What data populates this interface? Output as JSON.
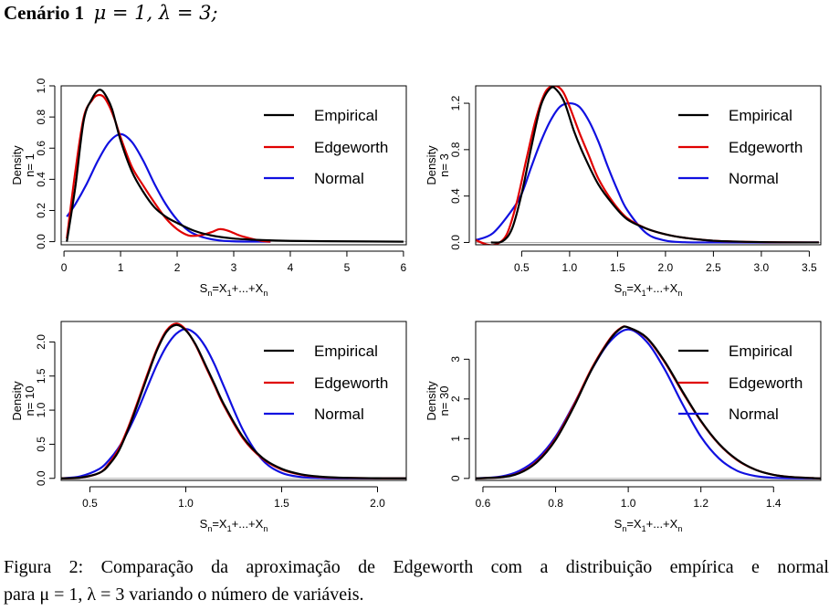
{
  "header": {
    "label": "Cenário 1",
    "params": "μ = 1, λ = 3;"
  },
  "caption": {
    "line1": "Figura 2: Comparação da aproximação de Edgeworth com a distribuição empírica e normal",
    "line2": "para μ = 1, λ = 3 variando o número de variáveis."
  },
  "colors": {
    "empirical": "#000000",
    "edgeworth": "#e00000",
    "normal": "#1010e0"
  },
  "chart_data": [
    {
      "type": "line",
      "ylabel": "Density",
      "n_label": "n= 1",
      "xlabel_parts": [
        "S",
        "n",
        "=X",
        "1",
        "+...+X",
        "n"
      ],
      "xlim": [
        -0.05,
        6.05
      ],
      "ylim": [
        -0.02,
        1.0
      ],
      "xticks": [
        0,
        1,
        2,
        3,
        4,
        5,
        6
      ],
      "xtick_labels": [
        "0",
        "1",
        "2",
        "3",
        "4",
        "5",
        "6"
      ],
      "yticks": [
        0.0,
        0.2,
        0.4,
        0.6,
        0.8,
        1.0
      ],
      "ytick_labels": [
        "0.0",
        "0.2",
        "0.4",
        "0.6",
        "0.8",
        "1.0"
      ],
      "legend": [
        "Empirical",
        "Edgeworth",
        "Normal"
      ],
      "series": [
        {
          "name": "Empirical",
          "x": [
            0.05,
            0.2,
            0.35,
            0.5,
            0.6,
            0.67,
            0.75,
            0.85,
            1.0,
            1.2,
            1.4,
            1.6,
            1.8,
            2.0,
            2.3,
            2.6,
            3.0,
            3.5,
            4.0,
            5.0,
            6.0
          ],
          "y": [
            0.0,
            0.35,
            0.78,
            0.92,
            0.97,
            0.97,
            0.93,
            0.85,
            0.65,
            0.45,
            0.32,
            0.22,
            0.16,
            0.12,
            0.07,
            0.04,
            0.02,
            0.01,
            0.005,
            0.002,
            0.0
          ]
        },
        {
          "name": "Edgeworth",
          "x": [
            0.05,
            0.2,
            0.35,
            0.5,
            0.6,
            0.7,
            0.8,
            0.9,
            1.0,
            1.2,
            1.4,
            1.6,
            1.8,
            2.0,
            2.2,
            2.4,
            2.6,
            2.75,
            2.9,
            3.1,
            3.3,
            3.5,
            3.65
          ],
          "y": [
            0.02,
            0.45,
            0.8,
            0.91,
            0.94,
            0.93,
            0.87,
            0.78,
            0.67,
            0.48,
            0.36,
            0.25,
            0.15,
            0.08,
            0.04,
            0.04,
            0.06,
            0.08,
            0.07,
            0.04,
            0.02,
            0.005,
            0.0
          ]
        },
        {
          "name": "Normal",
          "x": [
            0.05,
            0.2,
            0.4,
            0.6,
            0.8,
            1.0,
            1.2,
            1.4,
            1.6,
            1.8,
            2.0,
            2.2,
            2.4,
            2.6,
            2.8,
            3.0,
            3.3,
            3.65
          ],
          "y": [
            0.16,
            0.24,
            0.37,
            0.52,
            0.64,
            0.69,
            0.64,
            0.52,
            0.37,
            0.24,
            0.14,
            0.07,
            0.035,
            0.016,
            0.006,
            0.002,
            0.0005,
            0.0
          ]
        }
      ]
    },
    {
      "type": "line",
      "ylabel": "Density",
      "n_label": "n= 3",
      "xlabel_parts": [
        "S",
        "n",
        "=X",
        "1",
        "+...+X",
        "n"
      ],
      "xlim": [
        0.02,
        3.62
      ],
      "ylim": [
        -0.02,
        1.35
      ],
      "xticks": [
        0.5,
        1.0,
        1.5,
        2.0,
        2.5,
        3.0,
        3.5
      ],
      "xtick_labels": [
        "0.5",
        "1.0",
        "1.5",
        "2.0",
        "2.5",
        "3.0",
        "3.5"
      ],
      "yticks": [
        0.0,
        0.4,
        0.8,
        1.2
      ],
      "ytick_labels": [
        "0.0",
        "0.4",
        "0.8",
        "1.2"
      ],
      "legend": [
        "Empirical",
        "Edgeworth",
        "Normal"
      ],
      "series": [
        {
          "name": "Empirical",
          "x": [
            0.18,
            0.3,
            0.4,
            0.5,
            0.6,
            0.7,
            0.8,
            0.87,
            0.95,
            1.05,
            1.15,
            1.3,
            1.45,
            1.6,
            1.8,
            2.0,
            2.2,
            2.5,
            3.0,
            3.6
          ],
          "y": [
            0.0,
            0.01,
            0.12,
            0.42,
            0.82,
            1.18,
            1.33,
            1.31,
            1.2,
            0.95,
            0.75,
            0.5,
            0.33,
            0.2,
            0.12,
            0.07,
            0.04,
            0.015,
            0.003,
            0.0
          ]
        },
        {
          "name": "Edgeworth",
          "x": [
            0.02,
            0.15,
            0.25,
            0.35,
            0.45,
            0.55,
            0.65,
            0.75,
            0.85,
            0.93,
            1.0,
            1.1,
            1.2,
            1.3,
            1.45,
            1.6,
            1.8,
            2.0,
            2.2,
            2.5,
            3.0,
            3.6
          ],
          "y": [
            0.02,
            -0.02,
            -0.01,
            0.08,
            0.35,
            0.72,
            1.07,
            1.3,
            1.35,
            1.3,
            1.17,
            0.95,
            0.75,
            0.55,
            0.35,
            0.21,
            0.12,
            0.07,
            0.04,
            0.015,
            0.003,
            0.0
          ]
        },
        {
          "name": "Normal",
          "x": [
            0.02,
            0.2,
            0.4,
            0.5,
            0.6,
            0.7,
            0.8,
            0.9,
            1.0,
            1.1,
            1.2,
            1.3,
            1.4,
            1.5,
            1.6,
            1.8,
            2.0,
            2.2,
            2.5,
            3.6
          ],
          "y": [
            0.02,
            0.08,
            0.28,
            0.42,
            0.65,
            0.87,
            1.05,
            1.17,
            1.2,
            1.17,
            1.05,
            0.87,
            0.65,
            0.45,
            0.28,
            0.08,
            0.016,
            0.002,
            0.0,
            0.0
          ]
        }
      ]
    },
    {
      "type": "line",
      "ylabel": "Density",
      "n_label": "n= 10",
      "xlabel_parts": [
        "S",
        "n",
        "=X",
        "1",
        "+...+X",
        "n"
      ],
      "xlim": [
        0.35,
        2.15
      ],
      "ylim": [
        -0.03,
        2.3
      ],
      "xticks": [
        0.5,
        1.0,
        1.5,
        2.0
      ],
      "xtick_labels": [
        "0.5",
        "1.0",
        "1.5",
        "2.0"
      ],
      "yticks": [
        0.0,
        0.5,
        1.0,
        1.5,
        2.0
      ],
      "ytick_labels": [
        "0.0",
        "0.5",
        "1.0",
        "1.5",
        "2.0"
      ],
      "legend": [
        "Empirical",
        "Edgeworth",
        "Normal"
      ],
      "series": [
        {
          "name": "Empirical",
          "x": [
            0.35,
            0.45,
            0.55,
            0.6,
            0.65,
            0.7,
            0.75,
            0.8,
            0.85,
            0.9,
            0.95,
            1.0,
            1.05,
            1.1,
            1.15,
            1.2,
            1.3,
            1.4,
            1.5,
            1.6,
            1.7,
            1.8,
            2.0,
            2.15
          ],
          "y": [
            0.0,
            0.01,
            0.08,
            0.2,
            0.4,
            0.72,
            1.1,
            1.5,
            1.88,
            2.15,
            2.25,
            2.17,
            1.97,
            1.68,
            1.38,
            1.08,
            0.6,
            0.3,
            0.14,
            0.06,
            0.025,
            0.01,
            0.002,
            0.0
          ]
        },
        {
          "name": "Edgeworth",
          "x": [
            0.35,
            0.45,
            0.55,
            0.6,
            0.65,
            0.7,
            0.75,
            0.8,
            0.85,
            0.9,
            0.95,
            1.0,
            1.05,
            1.1,
            1.15,
            1.2,
            1.3,
            1.4,
            1.5,
            1.6,
            1.7,
            1.8,
            2.0,
            2.15
          ],
          "y": [
            0.0,
            0.01,
            0.08,
            0.22,
            0.43,
            0.75,
            1.13,
            1.53,
            1.9,
            2.17,
            2.27,
            2.18,
            1.96,
            1.66,
            1.36,
            1.06,
            0.58,
            0.29,
            0.13,
            0.055,
            0.02,
            0.008,
            0.001,
            0.0
          ]
        },
        {
          "name": "Normal",
          "x": [
            0.35,
            0.45,
            0.55,
            0.6,
            0.65,
            0.7,
            0.75,
            0.8,
            0.85,
            0.9,
            0.95,
            1.0,
            1.05,
            1.1,
            1.15,
            1.2,
            1.3,
            1.4,
            1.5,
            1.6,
            1.7,
            1.8,
            2.0,
            2.15
          ],
          "y": [
            0.0,
            0.03,
            0.14,
            0.27,
            0.45,
            0.7,
            1.0,
            1.34,
            1.67,
            1.94,
            2.12,
            2.19,
            2.12,
            1.94,
            1.67,
            1.34,
            0.7,
            0.27,
            0.08,
            0.02,
            0.004,
            0.0,
            0.0,
            0.0
          ]
        }
      ]
    },
    {
      "type": "line",
      "ylabel": "Density",
      "n_label": "n= 30",
      "xlabel_parts": [
        "S",
        "n",
        "=X",
        "1",
        "+...+X",
        "n"
      ],
      "xlim": [
        0.58,
        1.53
      ],
      "ylim": [
        -0.05,
        3.95
      ],
      "xticks": [
        0.6,
        0.8,
        1.0,
        1.2,
        1.4
      ],
      "xtick_labels": [
        "0.6",
        "0.8",
        "1.0",
        "1.2",
        "1.4"
      ],
      "yticks": [
        0,
        1,
        2,
        3
      ],
      "ytick_labels": [
        "0",
        "1",
        "2",
        "3"
      ],
      "legend": [
        "Empirical",
        "Edgeworth",
        "Normal"
      ],
      "series": [
        {
          "name": "Empirical",
          "x": [
            0.58,
            0.65,
            0.7,
            0.75,
            0.8,
            0.85,
            0.9,
            0.95,
            0.98,
            1.0,
            1.05,
            1.1,
            1.15,
            1.2,
            1.25,
            1.3,
            1.35,
            1.4,
            1.45,
            1.53
          ],
          "y": [
            0.0,
            0.03,
            0.13,
            0.42,
            0.97,
            1.8,
            2.75,
            3.5,
            3.78,
            3.8,
            3.55,
            2.95,
            2.18,
            1.45,
            0.87,
            0.47,
            0.22,
            0.09,
            0.035,
            0.0
          ]
        },
        {
          "name": "Edgeworth",
          "x": [
            0.58,
            0.65,
            0.7,
            0.75,
            0.8,
            0.85,
            0.9,
            0.95,
            0.98,
            1.0,
            1.05,
            1.1,
            1.15,
            1.2,
            1.25,
            1.3,
            1.35,
            1.4,
            1.45,
            1.53
          ],
          "y": [
            0.0,
            0.03,
            0.14,
            0.44,
            1.0,
            1.84,
            2.78,
            3.52,
            3.79,
            3.8,
            3.54,
            2.93,
            2.16,
            1.44,
            0.86,
            0.46,
            0.22,
            0.09,
            0.035,
            0.0
          ]
        },
        {
          "name": "Normal",
          "x": [
            0.58,
            0.65,
            0.7,
            0.75,
            0.8,
            0.85,
            0.9,
            0.95,
            1.0,
            1.05,
            1.1,
            1.15,
            1.2,
            1.25,
            1.3,
            1.35,
            1.4,
            1.45,
            1.53
          ],
          "y": [
            0.0,
            0.05,
            0.19,
            0.5,
            1.05,
            1.86,
            2.75,
            3.45,
            3.75,
            3.45,
            2.75,
            1.86,
            1.05,
            0.5,
            0.19,
            0.06,
            0.015,
            0.003,
            0.0
          ]
        }
      ]
    }
  ]
}
